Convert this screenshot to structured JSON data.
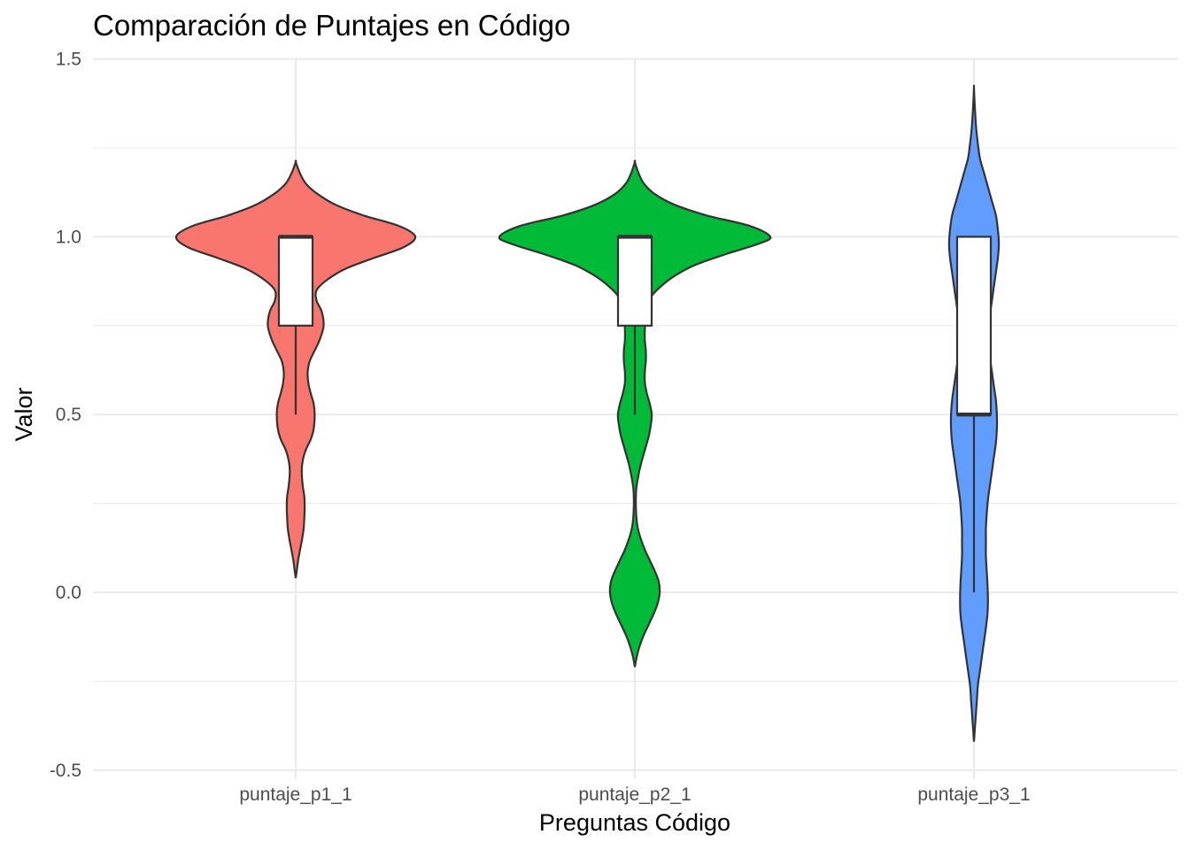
{
  "chart_data": {
    "type": "violin",
    "title": "Comparación de Puntajes en Código",
    "xlabel": "Preguntas Código",
    "ylabel": "Valor",
    "ylim": [
      -0.5,
      1.5
    ],
    "yticks": [
      "-0.5",
      "0.0",
      "0.5",
      "1.0",
      "1.5"
    ],
    "ytick_values": [
      -0.5,
      0.0,
      0.5,
      1.0,
      1.5
    ],
    "grid": true,
    "legend": "none",
    "categories": [
      "puntaje_p1_1",
      "puntaje_p2_1",
      "puntaje_p3_1"
    ],
    "series": [
      {
        "category": "puntaje_p1_1",
        "color": "#F8766D",
        "box": {
          "whisker_low": 0.5,
          "q1": 0.75,
          "median": 1.0,
          "q3": 1.0,
          "whisker_high": 1.0
        },
        "density": [
          [
            0.04,
            0.0
          ],
          [
            0.06,
            0.005
          ],
          [
            0.09,
            0.012
          ],
          [
            0.12,
            0.022
          ],
          [
            0.15,
            0.032
          ],
          [
            0.18,
            0.04
          ],
          [
            0.21,
            0.043
          ],
          [
            0.24,
            0.045
          ],
          [
            0.27,
            0.043
          ],
          [
            0.3,
            0.035
          ],
          [
            0.34,
            0.03
          ],
          [
            0.37,
            0.035
          ],
          [
            0.4,
            0.05
          ],
          [
            0.43,
            0.075
          ],
          [
            0.46,
            0.09
          ],
          [
            0.5,
            0.095
          ],
          [
            0.53,
            0.09
          ],
          [
            0.56,
            0.075
          ],
          [
            0.59,
            0.063
          ],
          [
            0.62,
            0.06
          ],
          [
            0.65,
            0.07
          ],
          [
            0.68,
            0.095
          ],
          [
            0.71,
            0.12
          ],
          [
            0.75,
            0.14
          ],
          [
            0.79,
            0.13
          ],
          [
            0.82,
            0.105
          ],
          [
            0.85,
            0.105
          ],
          [
            0.88,
            0.16
          ],
          [
            0.91,
            0.25
          ],
          [
            0.94,
            0.39
          ],
          [
            0.97,
            0.54
          ],
          [
            1.0,
            0.6
          ],
          [
            1.03,
            0.52
          ],
          [
            1.06,
            0.34
          ],
          [
            1.09,
            0.2
          ],
          [
            1.12,
            0.11
          ],
          [
            1.15,
            0.05
          ],
          [
            1.18,
            0.02
          ],
          [
            1.21,
            0.0
          ]
        ]
      },
      {
        "category": "puntaje_p2_1",
        "color": "#00BA38",
        "box": {
          "whisker_low": 0.5,
          "q1": 0.75,
          "median": 1.0,
          "q3": 1.0,
          "whisker_high": 1.0
        },
        "density": [
          [
            -0.21,
            0.0
          ],
          [
            -0.18,
            0.01
          ],
          [
            -0.15,
            0.025
          ],
          [
            -0.12,
            0.045
          ],
          [
            -0.09,
            0.07
          ],
          [
            -0.06,
            0.095
          ],
          [
            -0.03,
            0.115
          ],
          [
            0.0,
            0.125
          ],
          [
            0.03,
            0.12
          ],
          [
            0.06,
            0.1
          ],
          [
            0.09,
            0.075
          ],
          [
            0.12,
            0.05
          ],
          [
            0.15,
            0.03
          ],
          [
            0.18,
            0.015
          ],
          [
            0.21,
            0.008
          ],
          [
            0.25,
            0.005
          ],
          [
            0.29,
            0.007
          ],
          [
            0.32,
            0.015
          ],
          [
            0.36,
            0.03
          ],
          [
            0.4,
            0.05
          ],
          [
            0.44,
            0.07
          ],
          [
            0.47,
            0.08
          ],
          [
            0.5,
            0.085
          ],
          [
            0.53,
            0.075
          ],
          [
            0.56,
            0.06
          ],
          [
            0.59,
            0.05
          ],
          [
            0.62,
            0.05
          ],
          [
            0.65,
            0.055
          ],
          [
            0.68,
            0.055
          ],
          [
            0.71,
            0.05
          ],
          [
            0.74,
            0.05
          ],
          [
            0.77,
            0.055
          ],
          [
            0.8,
            0.06
          ],
          [
            0.83,
            0.08
          ],
          [
            0.86,
            0.13
          ],
          [
            0.89,
            0.2
          ],
          [
            0.92,
            0.3
          ],
          [
            0.95,
            0.45
          ],
          [
            0.98,
            0.62
          ],
          [
            1.0,
            0.68
          ],
          [
            1.03,
            0.58
          ],
          [
            1.06,
            0.36
          ],
          [
            1.09,
            0.2
          ],
          [
            1.12,
            0.1
          ],
          [
            1.15,
            0.045
          ],
          [
            1.18,
            0.018
          ],
          [
            1.21,
            0.0
          ]
        ]
      },
      {
        "category": "puntaje_p3_1",
        "color": "#619CFF",
        "box": {
          "whisker_low": 0.0,
          "q1": 0.5,
          "median": 0.5,
          "q3": 1.0,
          "whisker_high": 1.0
        },
        "density": [
          [
            -0.42,
            0.0
          ],
          [
            -0.38,
            0.005
          ],
          [
            -0.34,
            0.01
          ],
          [
            -0.3,
            0.015
          ],
          [
            -0.26,
            0.02
          ],
          [
            -0.22,
            0.03
          ],
          [
            -0.18,
            0.04
          ],
          [
            -0.14,
            0.05
          ],
          [
            -0.1,
            0.06
          ],
          [
            -0.06,
            0.068
          ],
          [
            -0.02,
            0.07
          ],
          [
            0.02,
            0.068
          ],
          [
            0.06,
            0.064
          ],
          [
            0.1,
            0.06
          ],
          [
            0.14,
            0.06
          ],
          [
            0.18,
            0.06
          ],
          [
            0.22,
            0.064
          ],
          [
            0.26,
            0.07
          ],
          [
            0.3,
            0.08
          ],
          [
            0.34,
            0.09
          ],
          [
            0.38,
            0.1
          ],
          [
            0.42,
            0.11
          ],
          [
            0.46,
            0.115
          ],
          [
            0.5,
            0.115
          ],
          [
            0.54,
            0.11
          ],
          [
            0.58,
            0.1
          ],
          [
            0.62,
            0.09
          ],
          [
            0.66,
            0.08
          ],
          [
            0.7,
            0.075
          ],
          [
            0.74,
            0.075
          ],
          [
            0.78,
            0.08
          ],
          [
            0.82,
            0.09
          ],
          [
            0.86,
            0.1
          ],
          [
            0.9,
            0.11
          ],
          [
            0.94,
            0.12
          ],
          [
            0.98,
            0.125
          ],
          [
            1.02,
            0.12
          ],
          [
            1.06,
            0.11
          ],
          [
            1.1,
            0.09
          ],
          [
            1.14,
            0.07
          ],
          [
            1.18,
            0.05
          ],
          [
            1.22,
            0.03
          ],
          [
            1.26,
            0.02
          ],
          [
            1.3,
            0.012
          ],
          [
            1.34,
            0.007
          ],
          [
            1.38,
            0.003
          ],
          [
            1.42,
            0.0
          ]
        ]
      }
    ]
  }
}
